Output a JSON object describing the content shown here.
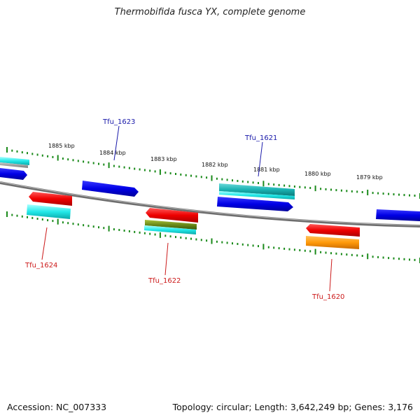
{
  "title": "Thermobifida fusca YX, complete genome",
  "footer": {
    "accession": "Accession: NC_007333",
    "summary": "Topology: circular; Length: 3,642,249 bp; Genes: 3,176"
  },
  "colors": {
    "backbone": "#7a7a7a",
    "tick": "#1a8a1a",
    "forward_gene": "#0a0aee",
    "reverse_gene": "#ee0a0a",
    "label_blue": "#1a1aaa",
    "label_red": "#cc1a1a"
  },
  "scale": {
    "labels": [
      "1885 kbp",
      "1884 kbp",
      "1883 kbp",
      "1882 kbp",
      "1881 kbp",
      "1880 kbp",
      "1879 kbp"
    ]
  },
  "genes": {
    "forward_labels": [
      "Tfu_1623",
      "Tfu_1621"
    ],
    "reverse_labels": [
      "Tfu_1624",
      "Tfu_1622",
      "Tfu_1620"
    ]
  }
}
